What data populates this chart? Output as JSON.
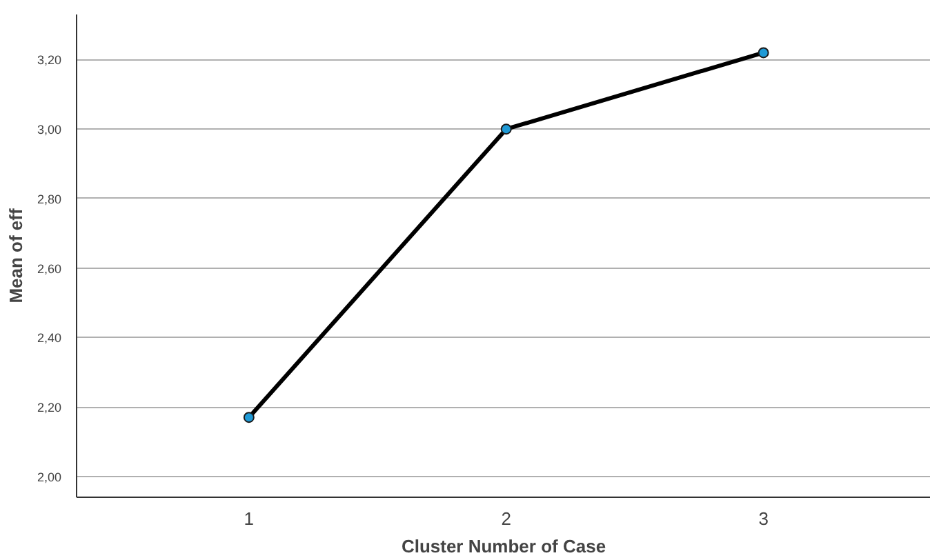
{
  "chart_data": {
    "type": "line",
    "xlabel": "Cluster Number of Case",
    "ylabel": "Mean of eff",
    "categories": [
      "1",
      "2",
      "3"
    ],
    "series": [
      {
        "color": "#000000",
        "values": [
          2.17,
          3.0,
          3.22
        ]
      }
    ],
    "ylim": [
      1.94,
      3.33
    ],
    "yticks": [
      {
        "value": 2.0,
        "label": "2,00"
      },
      {
        "value": 2.2,
        "label": "2,20"
      },
      {
        "value": 2.4,
        "label": "2,40"
      },
      {
        "value": 2.6,
        "label": "2,60"
      },
      {
        "value": 2.8,
        "label": "2,80"
      },
      {
        "value": 3.0,
        "label": "3,00"
      },
      {
        "value": 3.2,
        "label": "3,20"
      }
    ],
    "grid": "y",
    "marker": "circle",
    "line_style": "solid"
  }
}
